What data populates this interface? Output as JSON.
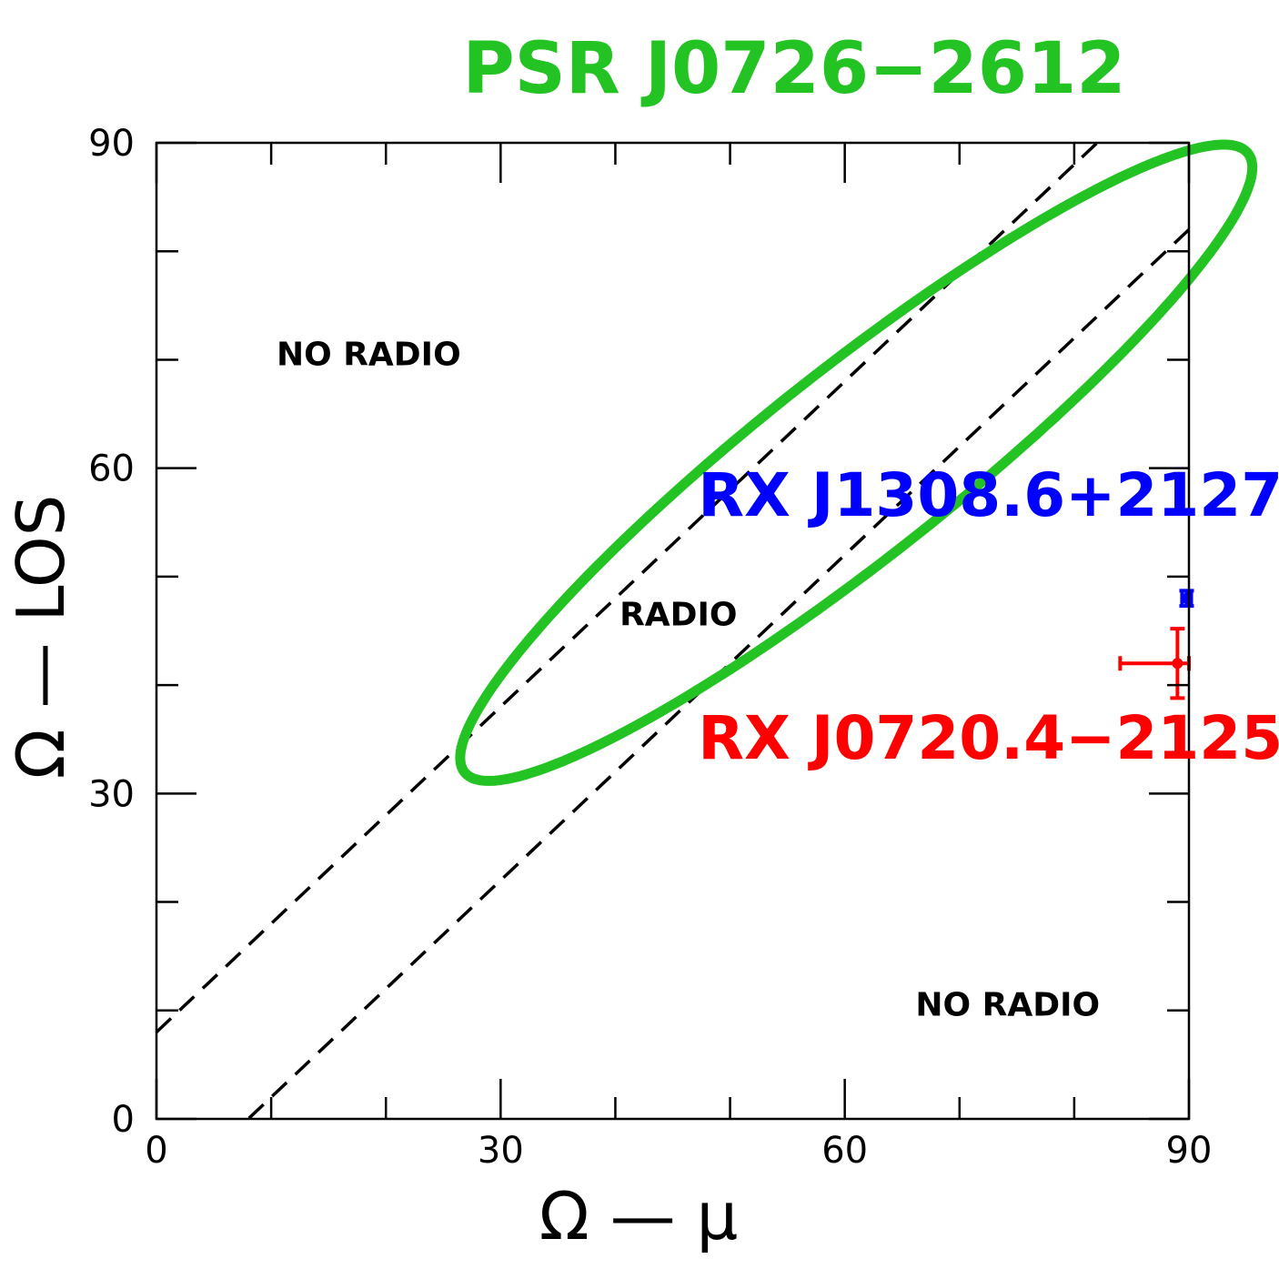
{
  "chart_data": {
    "type": "scatter",
    "title": "PSR J0726−2612",
    "xlabel": "Ω — μ",
    "ylabel": "Ω — LOS",
    "xlim": [
      0,
      90
    ],
    "ylim": [
      0,
      90
    ],
    "x_ticks": [
      "0",
      "30",
      "60",
      "90"
    ],
    "y_ticks": [
      "0",
      "30",
      "60",
      "90"
    ],
    "grid": false,
    "colors": {
      "psr": "#22c322",
      "rx1308": "#0000ff",
      "rx0720": "#ff0000",
      "boundary": "#000000"
    },
    "region_labels": [
      {
        "text": "NO RADIO",
        "x": 18.5,
        "y": 69.5
      },
      {
        "text": "RADIO",
        "x": 45.5,
        "y": 45.5
      },
      {
        "text": "NO RADIO",
        "x": 74.2,
        "y": 9.5
      }
    ],
    "boundary_lines": [
      {
        "intercept": 8,
        "slope": 1
      },
      {
        "intercept": -8,
        "slope": 1
      }
    ],
    "psr_region": {
      "name": "PSR J0726−2612",
      "center": [
        61,
        60.5
      ],
      "semi_major": 44.5,
      "semi_minor": 8.5,
      "angle_deg": 40
    },
    "series": [
      {
        "name": "RX J1308.6+2127",
        "points": [
          {
            "x": 89.8,
            "y": 48,
            "xerr": [
              0.4,
              0.4
            ],
            "yerr": [
              0.7,
              0.7
            ]
          }
        ]
      },
      {
        "name": "RX J0720.4−2125",
        "points": [
          {
            "x": 89,
            "y": 42,
            "xerr": [
              5,
              1
            ],
            "yerr": [
              3.2,
              3.2
            ]
          }
        ]
      }
    ],
    "source_labels": [
      {
        "text": "RX J1308.6+2127",
        "x": 47.2,
        "y": 55.6
      },
      {
        "text": "RX J0720.4−2125",
        "x": 47.2,
        "y": 33.2
      }
    ]
  }
}
